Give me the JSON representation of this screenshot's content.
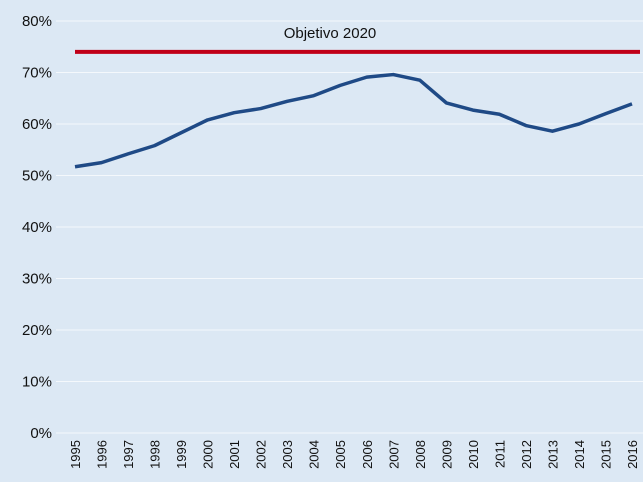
{
  "chart_data": {
    "type": "line",
    "categories": [
      "1995",
      "1996",
      "1997",
      "1998",
      "1999",
      "2000",
      "2001",
      "2002",
      "2003",
      "2004",
      "2005",
      "2006",
      "2007",
      "2008",
      "2009",
      "2010",
      "2011",
      "2012",
      "2013",
      "2014",
      "2015",
      "2016"
    ],
    "series": [
      {
        "color": "#1f4a86",
        "values": [
          51.7,
          52.5,
          54.2,
          55.8,
          58.3,
          60.8,
          62.2,
          63.0,
          64.4,
          65.5,
          67.5,
          69.1,
          69.6,
          68.5,
          64.1,
          62.7,
          61.9,
          59.7,
          58.6,
          60.0,
          62.0,
          63.9
        ]
      }
    ],
    "target": {
      "label": "Objetivo 2020",
      "value": 74,
      "color": "#c00018"
    },
    "ylim": [
      0,
      80
    ],
    "yticks": [
      {
        "value": 0,
        "label": "0%"
      },
      {
        "value": 10,
        "label": "10%"
      },
      {
        "value": 20,
        "label": "20%"
      },
      {
        "value": 30,
        "label": "30%"
      },
      {
        "value": 40,
        "label": "40%"
      },
      {
        "value": 50,
        "label": "50%"
      },
      {
        "value": 60,
        "label": "60%"
      },
      {
        "value": 70,
        "label": "70%"
      },
      {
        "value": 80,
        "label": "80%"
      }
    ],
    "grid": true
  }
}
